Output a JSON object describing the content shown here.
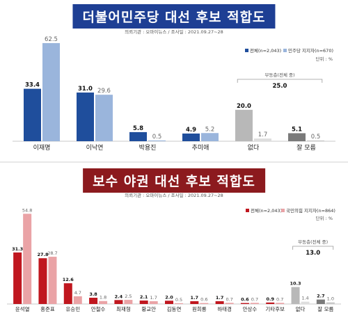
{
  "charts": [
    {
      "id": "top",
      "title": "더불어민주당 대선 후보 적합도",
      "source": "의뢰기관 : 오마이뉴스  /  조사일 : 2021.09.27~28",
      "unit_label": "단위 : %",
      "annotation": {
        "label": "부동층(전체 중)",
        "value": "25.0"
      }
    },
    {
      "id": "bottom",
      "title": "보수 야권 대선 후보 적합도",
      "source": "의뢰기관 : 오마이뉴스  /  조사일 : 2021.09.27~28",
      "unit_label": "단위 : %",
      "annotation": {
        "label": "부동층(전체 중)",
        "value": "13.0"
      }
    }
  ],
  "chart_data": [
    {
      "type": "bar",
      "title": "더불어민주당 대선 후보 적합도",
      "categories": [
        "이재명",
        "이낙연",
        "박용진",
        "추미애",
        "없다",
        "잘 모름"
      ],
      "series": [
        {
          "name": "전체(n=2,043)",
          "values": [
            33.4,
            31.0,
            5.8,
            4.9,
            20.0,
            5.1
          ]
        },
        {
          "name": "민주당 지지자(n=670)",
          "values": [
            62.5,
            29.6,
            0.5,
            5.2,
            1.7,
            0.5
          ]
        }
      ],
      "colors": {
        "primary": "#1f4e9c",
        "secondary": "#9ab5dc",
        "none_primary": "#b8b8b8",
        "none_secondary": "#dedede",
        "unknown_primary": "#7a7a7a",
        "unknown_secondary": "#c8c8c8"
      },
      "legend_position": "top-right",
      "ylim": [
        0,
        70
      ]
    },
    {
      "type": "bar",
      "title": "보수 야권 대선 후보 적합도",
      "categories": [
        "윤석열",
        "홍준표",
        "유승민",
        "안철수",
        "최재형",
        "황교안",
        "김동연",
        "원희룡",
        "하태경",
        "안상수",
        "기타후보",
        "없다",
        "잘 모름"
      ],
      "series": [
        {
          "name": "전체(n=2,043)",
          "values": [
            31.3,
            27.8,
            12.6,
            3.8,
            2.4,
            2.1,
            2.0,
            1.7,
            1.7,
            0.6,
            0.9,
            10.3,
            2.7
          ]
        },
        {
          "name": "국민의힘 지지자(n=864)",
          "values": [
            54.8,
            28.7,
            4.7,
            1.8,
            2.5,
            1.7,
            0.5,
            0.6,
            0.7,
            0.7,
            0.7,
            1.4,
            1.0
          ]
        }
      ],
      "colors": {
        "primary": "#c0171f",
        "secondary": "#eaa3a6",
        "none_primary": "#b8b8b8",
        "none_secondary": "#dedede",
        "unknown_primary": "#7a7a7a",
        "unknown_secondary": "#c8c8c8"
      },
      "legend_position": "top-right",
      "ylim": [
        0,
        60
      ]
    }
  ]
}
